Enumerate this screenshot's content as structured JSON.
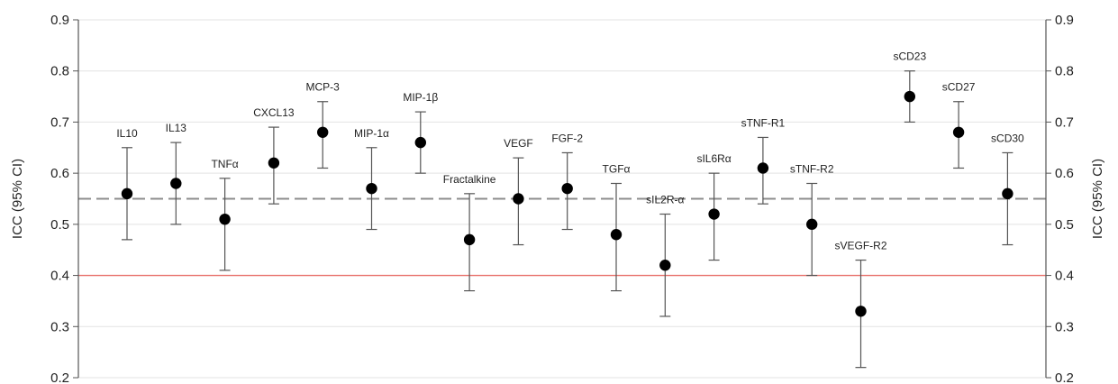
{
  "chart_data": {
    "type": "scatter",
    "ylabel": "ICC (95% CI)",
    "ylabel_right": "ICC (95% CI)",
    "ylim": [
      0.2,
      0.9
    ],
    "yticks": [
      "0.2",
      "0.3",
      "0.4",
      "0.5",
      "0.6",
      "0.7",
      "0.8",
      "0.9"
    ],
    "grid": true,
    "reference_lines": [
      {
        "value": 0.55,
        "style": "dashed",
        "color": "#8c8c8c"
      },
      {
        "value": 0.4,
        "style": "solid",
        "color": "#e8706b"
      }
    ],
    "points": [
      {
        "label": "IL10",
        "value": 0.56,
        "lower": 0.47,
        "upper": 0.65
      },
      {
        "label": "IL13",
        "value": 0.58,
        "lower": 0.5,
        "upper": 0.66
      },
      {
        "label": "TNFα",
        "value": 0.51,
        "lower": 0.41,
        "upper": 0.59
      },
      {
        "label": "CXCL13",
        "value": 0.62,
        "lower": 0.54,
        "upper": 0.69
      },
      {
        "label": "MCP-3",
        "value": 0.68,
        "lower": 0.61,
        "upper": 0.74
      },
      {
        "label": "MIP-1α",
        "value": 0.57,
        "lower": 0.49,
        "upper": 0.65
      },
      {
        "label": "MIP-1β",
        "value": 0.66,
        "lower": 0.6,
        "upper": 0.72
      },
      {
        "label": "Fractalkine",
        "value": 0.47,
        "lower": 0.37,
        "upper": 0.56
      },
      {
        "label": "VEGF",
        "value": 0.55,
        "lower": 0.46,
        "upper": 0.63
      },
      {
        "label": "FGF-2",
        "value": 0.57,
        "lower": 0.49,
        "upper": 0.64
      },
      {
        "label": "TGFα",
        "value": 0.48,
        "lower": 0.37,
        "upper": 0.58
      },
      {
        "label": "sIL2R-α",
        "value": 0.42,
        "lower": 0.32,
        "upper": 0.52
      },
      {
        "label": "sIL6Rα",
        "value": 0.52,
        "lower": 0.43,
        "upper": 0.6
      },
      {
        "label": "sTNF-R1",
        "value": 0.61,
        "lower": 0.54,
        "upper": 0.67
      },
      {
        "label": "sTNF-R2",
        "value": 0.5,
        "lower": 0.4,
        "upper": 0.58
      },
      {
        "label": "sVEGF-R2",
        "value": 0.33,
        "lower": 0.22,
        "upper": 0.43
      },
      {
        "label": "sCD23",
        "value": 0.75,
        "lower": 0.7,
        "upper": 0.8
      },
      {
        "label": "sCD27",
        "value": 0.68,
        "lower": 0.61,
        "upper": 0.74
      },
      {
        "label": "sCD30",
        "value": 0.56,
        "lower": 0.46,
        "upper": 0.64
      }
    ]
  }
}
